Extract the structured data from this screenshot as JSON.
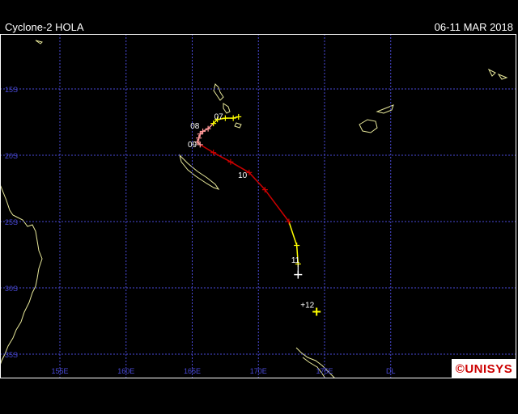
{
  "header": {
    "title": "Cyclone-2 HOLA",
    "date_range": "06-11 MAR 2018"
  },
  "map": {
    "lat_labels": [
      "15S",
      "20S",
      "25S",
      "30S",
      "35S"
    ],
    "lon_labels": [
      "155E",
      "160E",
      "165E",
      "170E",
      "175E",
      "DL"
    ],
    "day_labels": [
      {
        "text": "07",
        "lon": 167.0,
        "lat": -17.3
      },
      {
        "text": "08",
        "lon": 165.2,
        "lat": -18.0
      },
      {
        "text": "09",
        "lon": 165.0,
        "lat": -19.4
      },
      {
        "text": "10",
        "lon": 168.8,
        "lat": -21.7
      },
      {
        "text": "11",
        "lon": 172.8,
        "lat": -28.1
      },
      {
        "text": "+12",
        "lon": 173.7,
        "lat": -31.5
      }
    ],
    "colors": {
      "grid": "#4a4ad8",
      "coast": "#e8e89a",
      "depression": "#ffff00",
      "storm": "#ff9999",
      "cyclone1": "#cc0000",
      "forecast": "#ffffff"
    }
  },
  "track": [
    {
      "lon": 168.5,
      "lat": -17.1,
      "cat": "depression"
    },
    {
      "lon": 168.1,
      "lat": -17.2,
      "cat": "depression"
    },
    {
      "lon": 167.5,
      "lat": -17.2,
      "cat": "depression"
    },
    {
      "lon": 166.9,
      "lat": -17.3,
      "cat": "depression"
    },
    {
      "lon": 166.6,
      "lat": -17.6,
      "cat": "depression"
    },
    {
      "lon": 166.2,
      "lat": -18.0,
      "cat": "storm"
    },
    {
      "lon": 165.8,
      "lat": -18.2,
      "cat": "storm"
    },
    {
      "lon": 165.6,
      "lat": -18.4,
      "cat": "storm"
    },
    {
      "lon": 165.5,
      "lat": -18.7,
      "cat": "storm"
    },
    {
      "lon": 165.4,
      "lat": -19.0,
      "cat": "storm"
    },
    {
      "lon": 165.6,
      "lat": -19.2,
      "cat": "storm"
    },
    {
      "lon": 166.6,
      "lat": -19.8,
      "cat": "cyclone1"
    },
    {
      "lon": 167.9,
      "lat": -20.5,
      "cat": "cyclone1"
    },
    {
      "lon": 169.3,
      "lat": -21.3,
      "cat": "cyclone1"
    },
    {
      "lon": 170.5,
      "lat": -22.6,
      "cat": "cyclone1"
    },
    {
      "lon": 172.3,
      "lat": -25.0,
      "cat": "cyclone1"
    },
    {
      "lon": 172.9,
      "lat": -26.8,
      "cat": "depression"
    },
    {
      "lon": 173.0,
      "lat": -28.2,
      "cat": "depression"
    }
  ],
  "forecast": [
    {
      "lon": 173.0,
      "lat": -28.2
    },
    {
      "lon": 173.0,
      "lat": -29.0
    }
  ],
  "forecast_point": {
    "lon": 174.4,
    "lat": -31.8
  },
  "logo": {
    "text": "©UNISYS"
  }
}
